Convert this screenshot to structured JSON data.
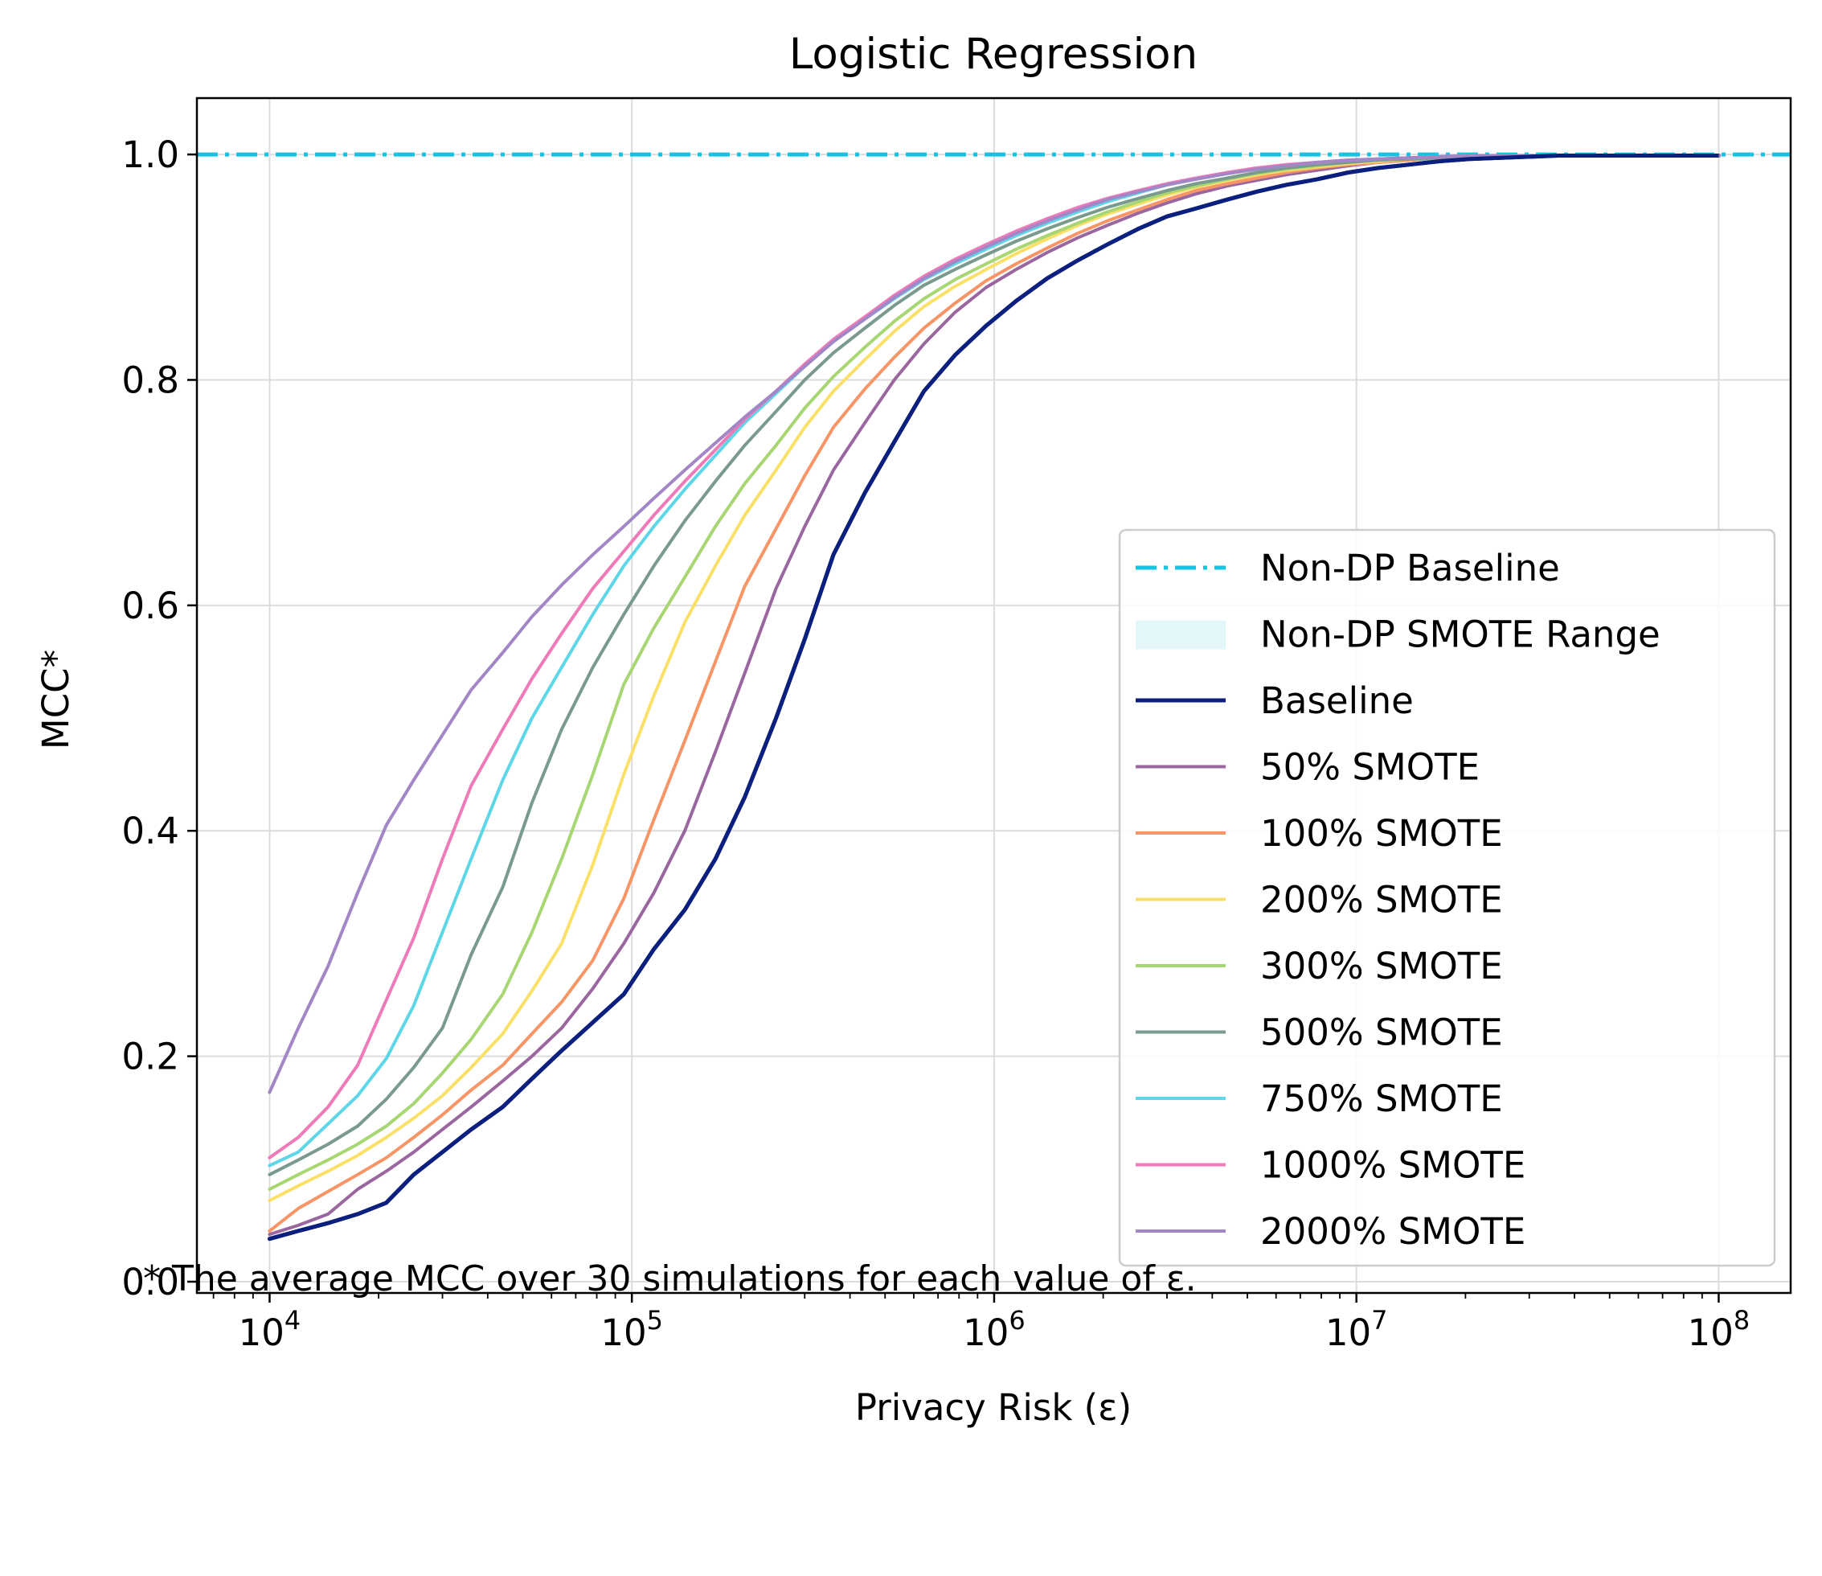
{
  "chart_data": {
    "type": "line",
    "title": "Logistic Regression",
    "xlabel": "Privacy Risk (ε)",
    "ylabel": "MCC*",
    "xscale": "log",
    "xlim": [
      6300,
      158000000
    ],
    "ylim": [
      -0.01,
      1.05
    ],
    "x_ticks": [
      {
        "value": 10000,
        "base": "10",
        "exp": "4"
      },
      {
        "value": 100000,
        "base": "10",
        "exp": "5"
      },
      {
        "value": 1000000,
        "base": "10",
        "exp": "6"
      },
      {
        "value": 10000000,
        "base": "10",
        "exp": "7"
      },
      {
        "value": 100000000,
        "base": "10",
        "exp": "8"
      }
    ],
    "y_ticks": [
      {
        "value": 0.0,
        "label": "0.0"
      },
      {
        "value": 0.2,
        "label": "0.2"
      },
      {
        "value": 0.4,
        "label": "0.4"
      },
      {
        "value": 0.6,
        "label": "0.6"
      },
      {
        "value": 0.8,
        "label": "0.8"
      },
      {
        "value": 1.0,
        "label": "1.0"
      }
    ],
    "grid": true,
    "legend_position": "lower-right",
    "reference_line": {
      "name": "Non-DP Baseline",
      "y": 1.0,
      "color": "#16c3e0",
      "style": "dash-dot"
    },
    "reference_band": {
      "name": "Non-DP SMOTE Range",
      "color": "#e3f7fb"
    },
    "x": [
      10000,
      12000,
      14500,
      17500,
      21000,
      25000,
      30000,
      36000,
      44000,
      53000,
      64000,
      78000,
      95000,
      115000,
      140000,
      170000,
      205000,
      250000,
      300000,
      360000,
      440000,
      530000,
      640000,
      780000,
      950000,
      1150000,
      1400000,
      1700000,
      2050000,
      2500000,
      3000000,
      3600000,
      4400000,
      5300000,
      6400000,
      7800000,
      9500000,
      11500000,
      14000000,
      17000000,
      20500000,
      25000000,
      30000000,
      36000000,
      44000000,
      53000000,
      64000000,
      78000000,
      100000000
    ],
    "series": [
      {
        "name": "Baseline",
        "color": "#0b1f7e",
        "width": 5,
        "values": [
          0.038,
          0.045,
          0.052,
          0.06,
          0.07,
          0.095,
          0.115,
          0.135,
          0.155,
          0.18,
          0.205,
          0.23,
          0.255,
          0.295,
          0.33,
          0.375,
          0.43,
          0.5,
          0.57,
          0.645,
          0.7,
          0.745,
          0.79,
          0.822,
          0.848,
          0.87,
          0.89,
          0.906,
          0.92,
          0.934,
          0.945,
          0.952,
          0.96,
          0.967,
          0.973,
          0.978,
          0.984,
          0.988,
          0.991,
          0.994,
          0.996,
          0.997,
          0.998,
          0.999,
          0.999,
          0.999,
          0.999,
          0.999,
          0.999
        ]
      },
      {
        "name": "50% SMOTE",
        "color": "#9a66a0",
        "width": 4,
        "values": [
          0.042,
          0.05,
          0.06,
          0.082,
          0.098,
          0.115,
          0.135,
          0.155,
          0.178,
          0.2,
          0.225,
          0.26,
          0.3,
          0.345,
          0.4,
          0.47,
          0.54,
          0.615,
          0.67,
          0.72,
          0.762,
          0.8,
          0.832,
          0.86,
          0.882,
          0.898,
          0.913,
          0.926,
          0.937,
          0.948,
          0.957,
          0.965,
          0.972,
          0.977,
          0.982,
          0.986,
          0.99,
          0.993,
          0.995,
          0.997,
          0.998,
          0.999,
          0.999,
          0.999,
          0.999,
          0.999,
          0.999,
          0.999,
          0.999
        ]
      },
      {
        "name": "100% SMOTE",
        "color": "#f79566",
        "width": 4,
        "values": [
          0.045,
          0.065,
          0.08,
          0.095,
          0.11,
          0.128,
          0.148,
          0.17,
          0.192,
          0.22,
          0.248,
          0.285,
          0.34,
          0.41,
          0.48,
          0.55,
          0.617,
          0.668,
          0.715,
          0.758,
          0.792,
          0.82,
          0.846,
          0.868,
          0.888,
          0.903,
          0.917,
          0.93,
          0.941,
          0.951,
          0.96,
          0.968,
          0.974,
          0.979,
          0.984,
          0.988,
          0.991,
          0.993,
          0.995,
          0.997,
          0.998,
          0.999,
          0.999,
          0.999,
          0.999,
          0.999,
          0.999,
          0.999,
          0.999
        ]
      },
      {
        "name": "200% SMOTE",
        "color": "#fbe068",
        "width": 4,
        "values": [
          0.072,
          0.085,
          0.098,
          0.112,
          0.128,
          0.145,
          0.165,
          0.19,
          0.22,
          0.258,
          0.3,
          0.37,
          0.45,
          0.52,
          0.585,
          0.635,
          0.68,
          0.72,
          0.758,
          0.79,
          0.818,
          0.843,
          0.865,
          0.883,
          0.898,
          0.912,
          0.925,
          0.937,
          0.947,
          0.956,
          0.964,
          0.971,
          0.977,
          0.982,
          0.986,
          0.989,
          0.992,
          0.994,
          0.996,
          0.997,
          0.998,
          0.999,
          0.999,
          0.999,
          0.999,
          0.999,
          0.999,
          0.999,
          0.999
        ]
      },
      {
        "name": "300% SMOTE",
        "color": "#a8d672",
        "width": 4,
        "values": [
          0.082,
          0.095,
          0.108,
          0.122,
          0.138,
          0.158,
          0.185,
          0.215,
          0.255,
          0.31,
          0.375,
          0.45,
          0.53,
          0.58,
          0.625,
          0.67,
          0.708,
          0.742,
          0.775,
          0.803,
          0.829,
          0.852,
          0.872,
          0.889,
          0.903,
          0.916,
          0.928,
          0.939,
          0.949,
          0.958,
          0.966,
          0.972,
          0.978,
          0.983,
          0.987,
          0.99,
          0.993,
          0.995,
          0.996,
          0.997,
          0.998,
          0.999,
          0.999,
          0.999,
          0.999,
          0.999,
          0.999,
          0.999,
          0.999
        ]
      },
      {
        "name": "500% SMOTE",
        "color": "#7a9a8e",
        "width": 4,
        "values": [
          0.095,
          0.108,
          0.122,
          0.138,
          0.162,
          0.19,
          0.225,
          0.29,
          0.35,
          0.425,
          0.49,
          0.545,
          0.592,
          0.635,
          0.675,
          0.71,
          0.742,
          0.772,
          0.8,
          0.824,
          0.846,
          0.866,
          0.884,
          0.898,
          0.911,
          0.923,
          0.934,
          0.944,
          0.953,
          0.961,
          0.968,
          0.974,
          0.979,
          0.984,
          0.988,
          0.991,
          0.993,
          0.995,
          0.996,
          0.997,
          0.998,
          0.999,
          0.999,
          0.999,
          0.999,
          0.999,
          0.999,
          0.999,
          0.999
        ]
      },
      {
        "name": "750% SMOTE",
        "color": "#5dd7e8",
        "width": 4,
        "values": [
          0.103,
          0.115,
          0.14,
          0.165,
          0.198,
          0.245,
          0.31,
          0.375,
          0.445,
          0.5,
          0.545,
          0.592,
          0.635,
          0.67,
          0.703,
          0.733,
          0.762,
          0.788,
          0.812,
          0.834,
          0.854,
          0.872,
          0.889,
          0.903,
          0.916,
          0.928,
          0.939,
          0.949,
          0.958,
          0.966,
          0.973,
          0.978,
          0.983,
          0.987,
          0.99,
          0.993,
          0.995,
          0.996,
          0.997,
          0.998,
          0.999,
          0.999,
          0.999,
          0.999,
          0.999,
          0.999,
          0.999,
          0.999,
          0.999
        ]
      },
      {
        "name": "1000% SMOTE",
        "color": "#ef7ab8",
        "width": 4,
        "values": [
          0.11,
          0.128,
          0.155,
          0.192,
          0.25,
          0.305,
          0.375,
          0.44,
          0.49,
          0.535,
          0.575,
          0.615,
          0.648,
          0.68,
          0.71,
          0.738,
          0.765,
          0.79,
          0.814,
          0.836,
          0.856,
          0.875,
          0.892,
          0.907,
          0.92,
          0.932,
          0.943,
          0.953,
          0.961,
          0.968,
          0.974,
          0.979,
          0.984,
          0.988,
          0.991,
          0.993,
          0.995,
          0.996,
          0.997,
          0.998,
          0.999,
          0.999,
          0.999,
          0.999,
          0.999,
          0.999,
          0.999,
          0.999,
          0.999
        ]
      },
      {
        "name": "2000% SMOTE",
        "color": "#a386c6",
        "width": 4,
        "values": [
          0.168,
          0.225,
          0.28,
          0.345,
          0.405,
          0.445,
          0.485,
          0.525,
          0.558,
          0.59,
          0.618,
          0.645,
          0.67,
          0.695,
          0.72,
          0.744,
          0.767,
          0.79,
          0.812,
          0.834,
          0.854,
          0.873,
          0.89,
          0.905,
          0.918,
          0.93,
          0.941,
          0.951,
          0.96,
          0.967,
          0.973,
          0.978,
          0.983,
          0.987,
          0.99,
          0.993,
          0.995,
          0.996,
          0.997,
          0.998,
          0.999,
          0.999,
          0.999,
          0.999,
          0.999,
          0.999,
          0.999,
          0.999,
          0.999
        ]
      }
    ],
    "footnote": "* The average MCC over 30 simulations for each value of ε."
  }
}
